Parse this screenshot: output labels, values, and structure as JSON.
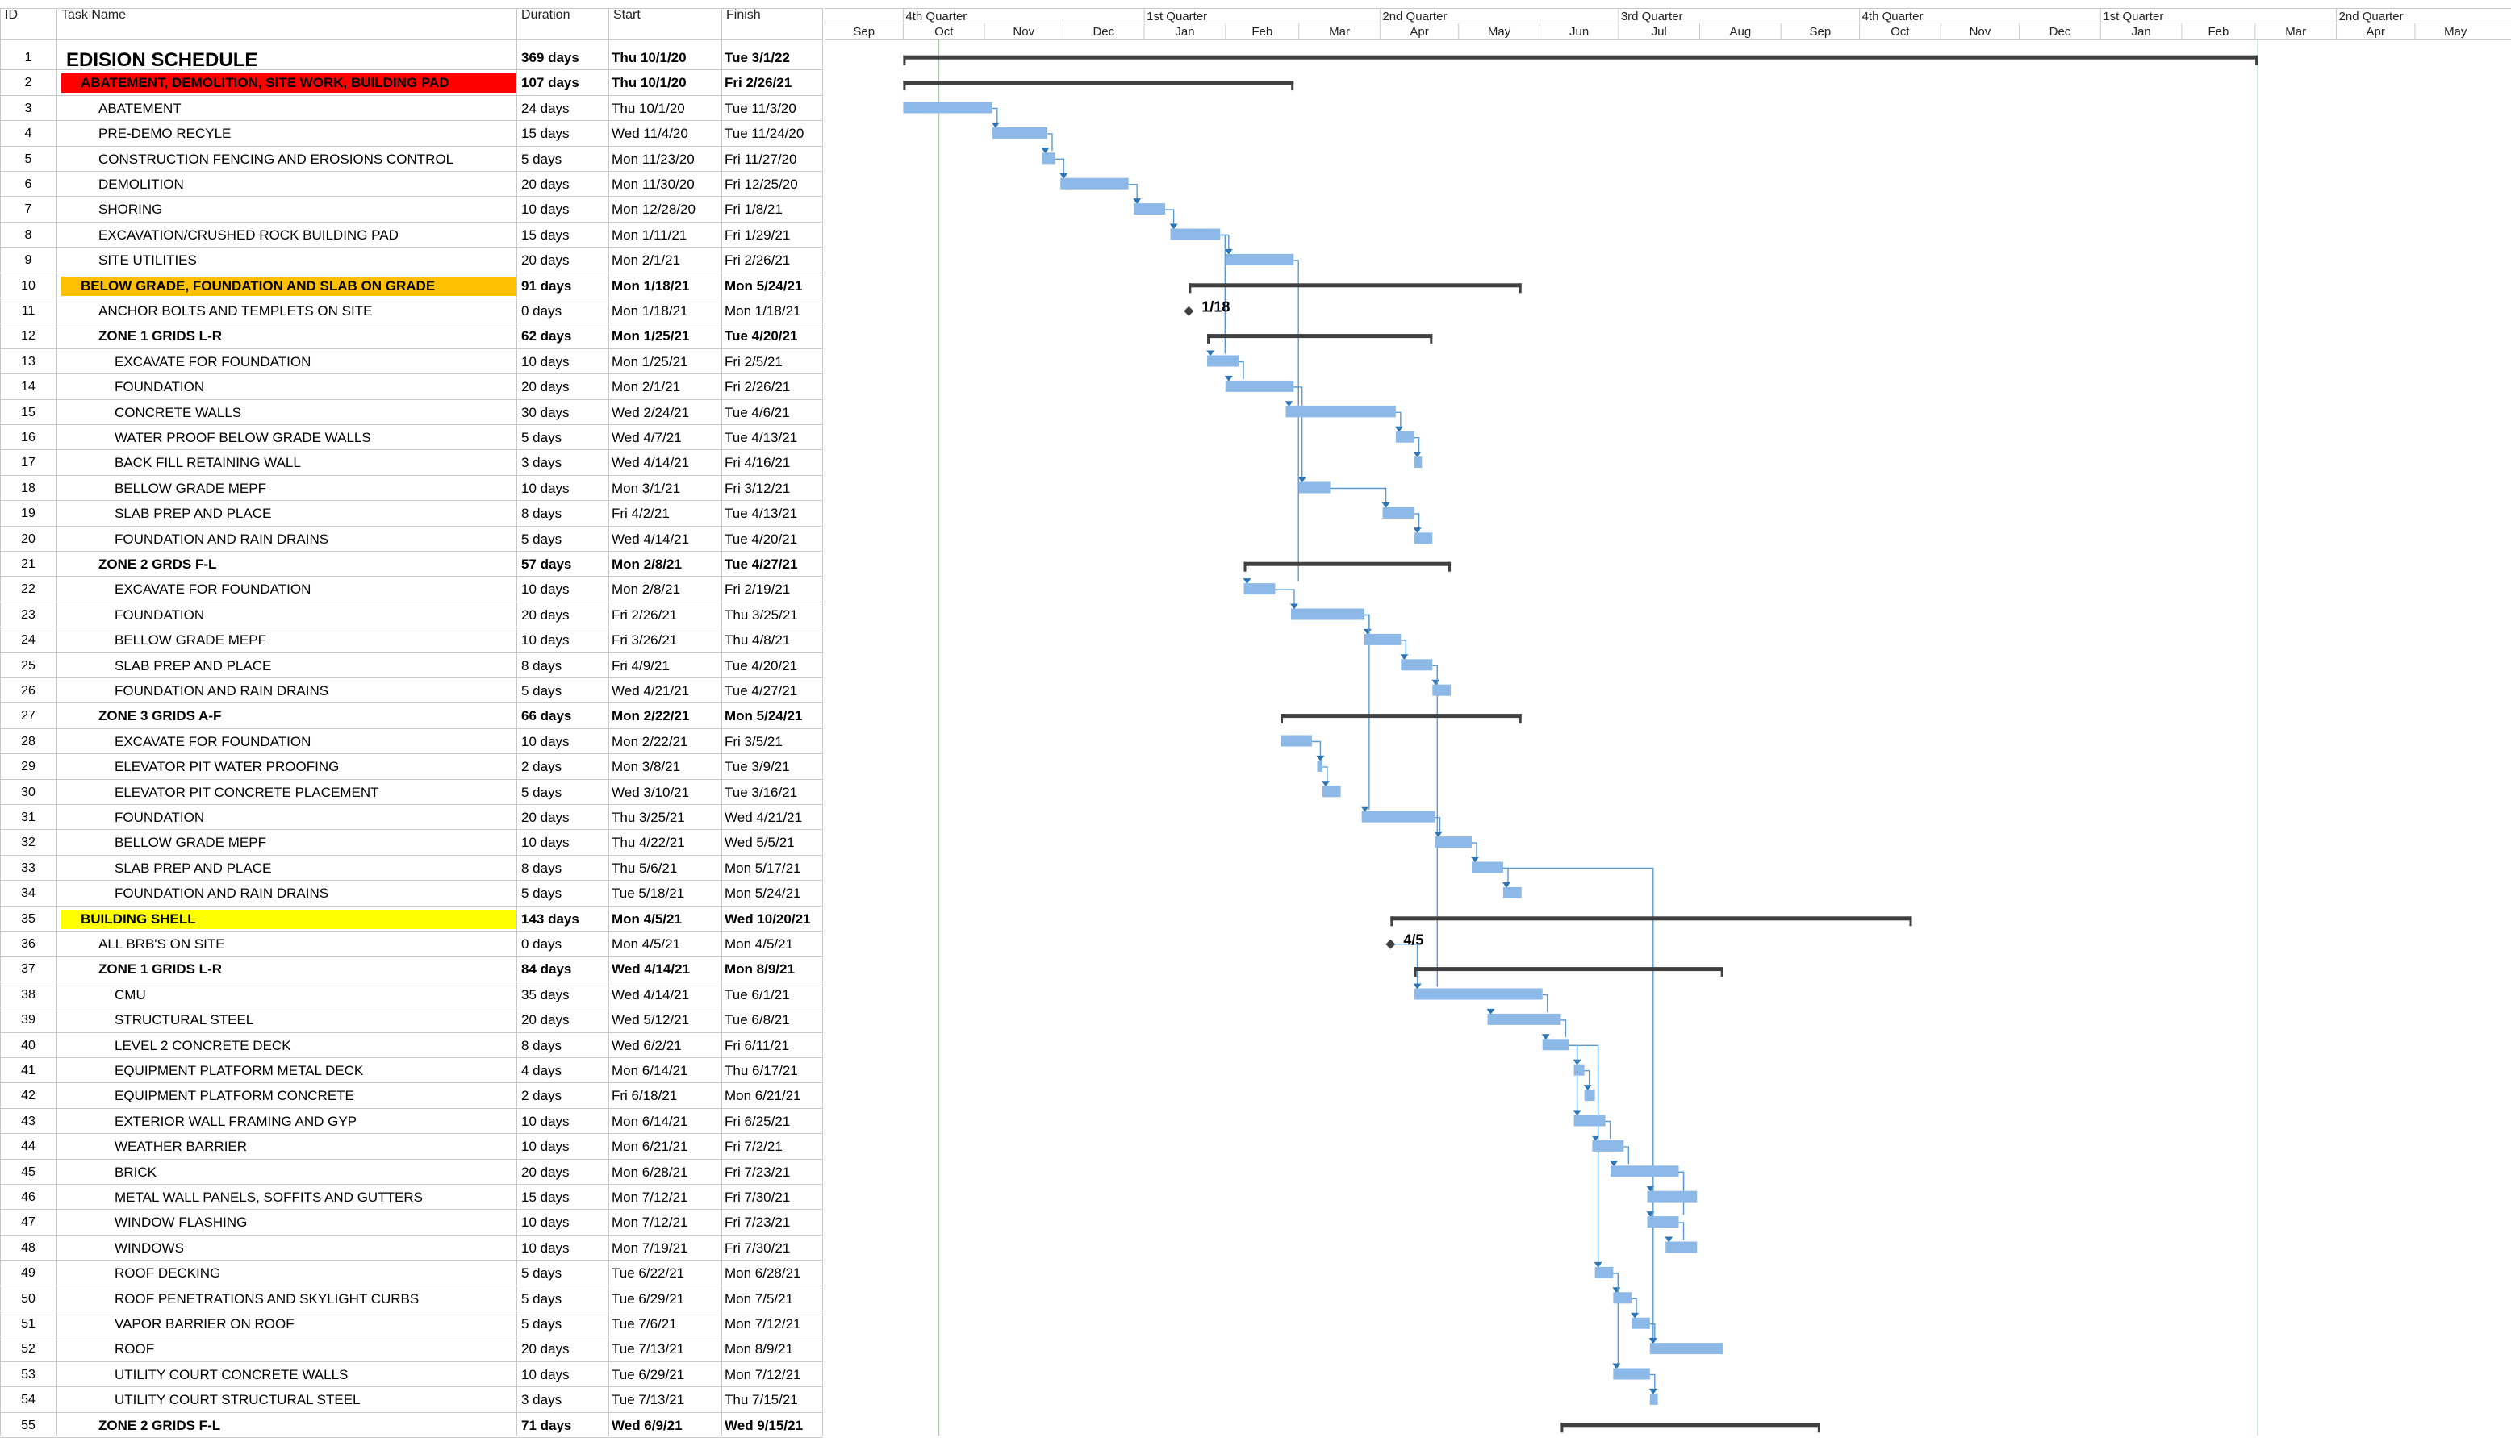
{
  "columns": {
    "id": "ID",
    "name": "Task Name",
    "duration": "Duration",
    "start": "Start",
    "finish": "Finish"
  },
  "timescale": {
    "quarters": [
      "4th Quarter",
      "1st Quarter",
      "2nd Quarter",
      "3rd Quarter",
      "4th Quarter",
      "1st Quarter",
      "2nd Quarter"
    ],
    "months": [
      "Sep",
      "Oct",
      "Nov",
      "Dec",
      "Jan",
      "Feb",
      "Mar",
      "Apr",
      "May",
      "Jun",
      "Jul",
      "Aug",
      "Sep",
      "Oct",
      "Nov",
      "Dec",
      "Jan",
      "Feb",
      "Mar",
      "Apr",
      "May"
    ],
    "first_month": "2020-09"
  },
  "colors": {
    "red": "#ff0000",
    "orange": "#ffc000",
    "yellow": "#ffff00",
    "bar": "#8db9e8",
    "summary": "#404040",
    "link": "#5a9bd5",
    "today": "#9acd9a"
  },
  "tasks": [
    {
      "id": "1",
      "name": "EDISION SCHEDULE",
      "duration": "369 days",
      "start": "Thu 10/1/20",
      "finish": "Tue 3/1/22",
      "level": 0,
      "type": "summary",
      "title": true
    },
    {
      "id": "2",
      "name": "ABATEMENT, DEMOLITION, SITE WORK, BUILDING PAD",
      "duration": "107 days",
      "start": "Thu 10/1/20",
      "finish": "Fri 2/26/21",
      "level": 1,
      "type": "summary",
      "highlight": "red"
    },
    {
      "id": "3",
      "name": "ABATEMENT",
      "duration": "24 days",
      "start": "Thu 10/1/20",
      "finish": "Tue 11/3/20",
      "level": 2,
      "type": "task"
    },
    {
      "id": "4",
      "name": "PRE-DEMO RECYLE",
      "duration": "15 days",
      "start": "Wed 11/4/20",
      "finish": "Tue 11/24/20",
      "level": 2,
      "type": "task"
    },
    {
      "id": "5",
      "name": "CONSTRUCTION FENCING AND EROSIONS CONTROL",
      "duration": "5 days",
      "start": "Mon 11/23/20",
      "finish": "Fri 11/27/20",
      "level": 2,
      "type": "task"
    },
    {
      "id": "6",
      "name": "DEMOLITION",
      "duration": "20 days",
      "start": "Mon 11/30/20",
      "finish": "Fri 12/25/20",
      "level": 2,
      "type": "task"
    },
    {
      "id": "7",
      "name": "SHORING",
      "duration": "10 days",
      "start": "Mon 12/28/20",
      "finish": "Fri 1/8/21",
      "level": 2,
      "type": "task"
    },
    {
      "id": "8",
      "name": "EXCAVATION/CRUSHED ROCK BUILDING PAD",
      "duration": "15 days",
      "start": "Mon 1/11/21",
      "finish": "Fri 1/29/21",
      "level": 2,
      "type": "task"
    },
    {
      "id": "9",
      "name": "SITE UTILITIES",
      "duration": "20 days",
      "start": "Mon 2/1/21",
      "finish": "Fri 2/26/21",
      "level": 2,
      "type": "task"
    },
    {
      "id": "10",
      "name": "BELOW GRADE, FOUNDATION AND SLAB ON GRADE",
      "duration": "91 days",
      "start": "Mon 1/18/21",
      "finish": "Mon 5/24/21",
      "level": 1,
      "type": "summary",
      "highlight": "orange"
    },
    {
      "id": "11",
      "name": "ANCHOR BOLTS AND TEMPLETS ON SITE",
      "duration": "0 days",
      "start": "Mon 1/18/21",
      "finish": "Mon 1/18/21",
      "level": 2,
      "type": "milestone",
      "label": "1/18"
    },
    {
      "id": "12",
      "name": "ZONE 1 GRIDS L-R",
      "duration": "62 days",
      "start": "Mon 1/25/21",
      "finish": "Tue 4/20/21",
      "level": 2,
      "type": "summary"
    },
    {
      "id": "13",
      "name": "EXCAVATE FOR FOUNDATION",
      "duration": "10 days",
      "start": "Mon 1/25/21",
      "finish": "Fri 2/5/21",
      "level": 3,
      "type": "task"
    },
    {
      "id": "14",
      "name": "FOUNDATION",
      "duration": "20 days",
      "start": "Mon 2/1/21",
      "finish": "Fri 2/26/21",
      "level": 3,
      "type": "task"
    },
    {
      "id": "15",
      "name": "CONCRETE WALLS",
      "duration": "30 days",
      "start": "Wed 2/24/21",
      "finish": "Tue 4/6/21",
      "level": 3,
      "type": "task"
    },
    {
      "id": "16",
      "name": "WATER PROOF BELOW GRADE WALLS",
      "duration": "5 days",
      "start": "Wed 4/7/21",
      "finish": "Tue 4/13/21",
      "level": 3,
      "type": "task"
    },
    {
      "id": "17",
      "name": "BACK FILL RETAINING WALL",
      "duration": "3 days",
      "start": "Wed 4/14/21",
      "finish": "Fri 4/16/21",
      "level": 3,
      "type": "task"
    },
    {
      "id": "18",
      "name": "BELLOW GRADE MEPF",
      "duration": "10 days",
      "start": "Mon 3/1/21",
      "finish": "Fri 3/12/21",
      "level": 3,
      "type": "task"
    },
    {
      "id": "19",
      "name": "SLAB PREP AND PLACE",
      "duration": "8 days",
      "start": "Fri 4/2/21",
      "finish": "Tue 4/13/21",
      "level": 3,
      "type": "task"
    },
    {
      "id": "20",
      "name": "FOUNDATION AND RAIN DRAINS",
      "duration": "5 days",
      "start": "Wed 4/14/21",
      "finish": "Tue 4/20/21",
      "level": 3,
      "type": "task"
    },
    {
      "id": "21",
      "name": "ZONE 2 GRDS F-L",
      "duration": "57 days",
      "start": "Mon 2/8/21",
      "finish": "Tue 4/27/21",
      "level": 2,
      "type": "summary"
    },
    {
      "id": "22",
      "name": "EXCAVATE FOR FOUNDATION",
      "duration": "10 days",
      "start": "Mon 2/8/21",
      "finish": "Fri 2/19/21",
      "level": 3,
      "type": "task"
    },
    {
      "id": "23",
      "name": "FOUNDATION",
      "duration": "20 days",
      "start": "Fri 2/26/21",
      "finish": "Thu 3/25/21",
      "level": 3,
      "type": "task"
    },
    {
      "id": "24",
      "name": "BELLOW GRADE MEPF",
      "duration": "10 days",
      "start": "Fri 3/26/21",
      "finish": "Thu 4/8/21",
      "level": 3,
      "type": "task"
    },
    {
      "id": "25",
      "name": "SLAB PREP AND PLACE",
      "duration": "8 days",
      "start": "Fri 4/9/21",
      "finish": "Tue 4/20/21",
      "level": 3,
      "type": "task"
    },
    {
      "id": "26",
      "name": "FOUNDATION AND RAIN DRAINS",
      "duration": "5 days",
      "start": "Wed 4/21/21",
      "finish": "Tue 4/27/21",
      "level": 3,
      "type": "task"
    },
    {
      "id": "27",
      "name": "ZONE 3 GRIDS A-F",
      "duration": "66 days",
      "start": "Mon 2/22/21",
      "finish": "Mon 5/24/21",
      "level": 2,
      "type": "summary"
    },
    {
      "id": "28",
      "name": "EXCAVATE FOR FOUNDATION",
      "duration": "10 days",
      "start": "Mon 2/22/21",
      "finish": "Fri 3/5/21",
      "level": 3,
      "type": "task"
    },
    {
      "id": "29",
      "name": "ELEVATOR PIT WATER PROOFING",
      "duration": "2 days",
      "start": "Mon 3/8/21",
      "finish": "Tue 3/9/21",
      "level": 3,
      "type": "task"
    },
    {
      "id": "30",
      "name": "ELEVATOR PIT CONCRETE PLACEMENT",
      "duration": "5 days",
      "start": "Wed 3/10/21",
      "finish": "Tue 3/16/21",
      "level": 3,
      "type": "task"
    },
    {
      "id": "31",
      "name": "FOUNDATION",
      "duration": "20 days",
      "start": "Thu 3/25/21",
      "finish": "Wed 4/21/21",
      "level": 3,
      "type": "task"
    },
    {
      "id": "32",
      "name": "BELLOW GRADE MEPF",
      "duration": "10 days",
      "start": "Thu 4/22/21",
      "finish": "Wed 5/5/21",
      "level": 3,
      "type": "task"
    },
    {
      "id": "33",
      "name": "SLAB PREP AND PLACE",
      "duration": "8 days",
      "start": "Thu 5/6/21",
      "finish": "Mon 5/17/21",
      "level": 3,
      "type": "task"
    },
    {
      "id": "34",
      "name": "FOUNDATION AND RAIN DRAINS",
      "duration": "5 days",
      "start": "Tue 5/18/21",
      "finish": "Mon 5/24/21",
      "level": 3,
      "type": "task"
    },
    {
      "id": "35",
      "name": "BUILDING SHELL",
      "duration": "143 days",
      "start": "Mon 4/5/21",
      "finish": "Wed 10/20/21",
      "level": 1,
      "type": "summary",
      "highlight": "yellow"
    },
    {
      "id": "36",
      "name": "ALL BRB'S ON SITE",
      "duration": "0 days",
      "start": "Mon 4/5/21",
      "finish": "Mon 4/5/21",
      "level": 2,
      "type": "milestone",
      "label": "4/5"
    },
    {
      "id": "37",
      "name": "ZONE 1 GRIDS L-R",
      "duration": "84 days",
      "start": "Wed 4/14/21",
      "finish": "Mon 8/9/21",
      "level": 2,
      "type": "summary"
    },
    {
      "id": "38",
      "name": "CMU",
      "duration": "35 days",
      "start": "Wed 4/14/21",
      "finish": "Tue 6/1/21",
      "level": 3,
      "type": "task"
    },
    {
      "id": "39",
      "name": "STRUCTURAL STEEL",
      "duration": "20 days",
      "start": "Wed 5/12/21",
      "finish": "Tue 6/8/21",
      "level": 3,
      "type": "task"
    },
    {
      "id": "40",
      "name": "LEVEL 2 CONCRETE DECK",
      "duration": "8 days",
      "start": "Wed 6/2/21",
      "finish": "Fri 6/11/21",
      "level": 3,
      "type": "task"
    },
    {
      "id": "41",
      "name": "EQUIPMENT PLATFORM METAL DECK",
      "duration": "4 days",
      "start": "Mon 6/14/21",
      "finish": "Thu 6/17/21",
      "level": 3,
      "type": "task"
    },
    {
      "id": "42",
      "name": "EQUIPMENT PLATFORM CONCRETE",
      "duration": "2 days",
      "start": "Fri 6/18/21",
      "finish": "Mon 6/21/21",
      "level": 3,
      "type": "task"
    },
    {
      "id": "43",
      "name": "EXTERIOR WALL FRAMING AND GYP",
      "duration": "10 days",
      "start": "Mon 6/14/21",
      "finish": "Fri 6/25/21",
      "level": 3,
      "type": "task"
    },
    {
      "id": "44",
      "name": "WEATHER BARRIER",
      "duration": "10 days",
      "start": "Mon 6/21/21",
      "finish": "Fri 7/2/21",
      "level": 3,
      "type": "task"
    },
    {
      "id": "45",
      "name": "BRICK",
      "duration": "20 days",
      "start": "Mon 6/28/21",
      "finish": "Fri 7/23/21",
      "level": 3,
      "type": "task"
    },
    {
      "id": "46",
      "name": "METAL WALL PANELS, SOFFITS AND GUTTERS",
      "duration": "15 days",
      "start": "Mon 7/12/21",
      "finish": "Fri 7/30/21",
      "level": 3,
      "type": "task"
    },
    {
      "id": "47",
      "name": "WINDOW FLASHING",
      "duration": "10 days",
      "start": "Mon 7/12/21",
      "finish": "Fri 7/23/21",
      "level": 3,
      "type": "task"
    },
    {
      "id": "48",
      "name": "WINDOWS",
      "duration": "10 days",
      "start": "Mon 7/19/21",
      "finish": "Fri 7/30/21",
      "level": 3,
      "type": "task"
    },
    {
      "id": "49",
      "name": "ROOF DECKING",
      "duration": "5 days",
      "start": "Tue 6/22/21",
      "finish": "Mon 6/28/21",
      "level": 3,
      "type": "task"
    },
    {
      "id": "50",
      "name": "ROOF PENETRATIONS AND SKYLIGHT CURBS",
      "duration": "5 days",
      "start": "Tue 6/29/21",
      "finish": "Mon 7/5/21",
      "level": 3,
      "type": "task"
    },
    {
      "id": "51",
      "name": "VAPOR BARRIER ON ROOF",
      "duration": "5 days",
      "start": "Tue 7/6/21",
      "finish": "Mon 7/12/21",
      "level": 3,
      "type": "task"
    },
    {
      "id": "52",
      "name": "ROOF",
      "duration": "20 days",
      "start": "Tue 7/13/21",
      "finish": "Mon 8/9/21",
      "level": 3,
      "type": "task"
    },
    {
      "id": "53",
      "name": "UTILITY COURT CONCRETE WALLS",
      "duration": "10 days",
      "start": "Tue 6/29/21",
      "finish": "Mon 7/12/21",
      "level": 3,
      "type": "task"
    },
    {
      "id": "54",
      "name": "UTILITY COURT STRUCTURAL STEEL",
      "duration": "3 days",
      "start": "Tue 7/13/21",
      "finish": "Thu 7/15/21",
      "level": 3,
      "type": "task"
    },
    {
      "id": "55",
      "name": "ZONE 2 GRIDS F-L",
      "duration": "71 days",
      "start": "Wed 6/9/21",
      "finish": "Wed 9/15/21",
      "level": 2,
      "type": "summary"
    }
  ],
  "links": [
    [
      3,
      4
    ],
    [
      4,
      5
    ],
    [
      5,
      6
    ],
    [
      6,
      7
    ],
    [
      7,
      8
    ],
    [
      8,
      9
    ],
    [
      8,
      13
    ],
    [
      13,
      14
    ],
    [
      14,
      15
    ],
    [
      15,
      16
    ],
    [
      16,
      17
    ],
    [
      14,
      18
    ],
    [
      18,
      19
    ],
    [
      19,
      20
    ],
    [
      9,
      22
    ],
    [
      22,
      23
    ],
    [
      23,
      24
    ],
    [
      24,
      25
    ],
    [
      25,
      26
    ],
    [
      25,
      38
    ],
    [
      28,
      29
    ],
    [
      29,
      30
    ],
    [
      23,
      31
    ],
    [
      31,
      32
    ],
    [
      32,
      33
    ],
    [
      33,
      34
    ],
    [
      36,
      38
    ],
    [
      38,
      39
    ],
    [
      39,
      40
    ],
    [
      40,
      41
    ],
    [
      41,
      42
    ],
    [
      40,
      43
    ],
    [
      43,
      44
    ],
    [
      44,
      45
    ],
    [
      45,
      46
    ],
    [
      45,
      47
    ],
    [
      47,
      48
    ],
    [
      40,
      49
    ],
    [
      49,
      50
    ],
    [
      50,
      51
    ],
    [
      51,
      52
    ],
    [
      49,
      53
    ],
    [
      53,
      54
    ],
    [
      33,
      52
    ]
  ]
}
